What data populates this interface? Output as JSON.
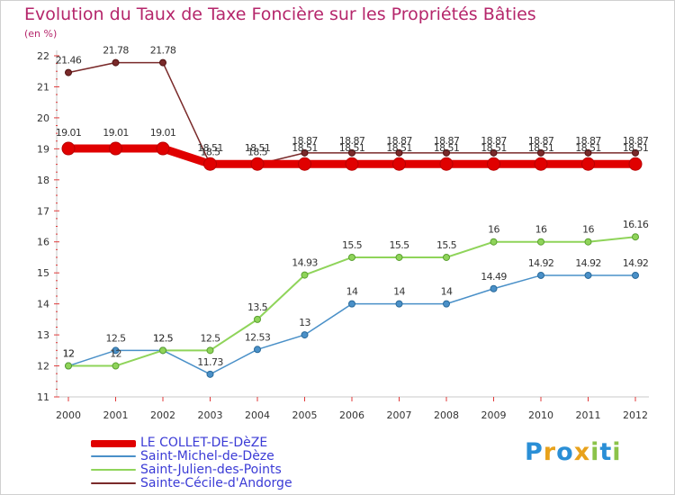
{
  "header": {
    "title": "Evolution du Taux de Taxe Foncière sur les Propriétés Bâties",
    "unit": "(en %)"
  },
  "logo": {
    "text": "Proxiti",
    "letters": [
      "P",
      "r",
      "o",
      "x",
      "i",
      "t",
      "i"
    ],
    "colors": [
      "#2a8fd6",
      "#e8a21c",
      "#2a8fd6",
      "#e8a21c",
      "#8bc34a",
      "#2a8fd6",
      "#8bc34a"
    ]
  },
  "chart_data": {
    "type": "line",
    "title": "Evolution du Taux de Taxe Foncière sur les Propriétés Bâties",
    "ylabel": "(en %)",
    "xlabel": "",
    "x": [
      "2000",
      "2001",
      "2002",
      "2003",
      "2004",
      "2005",
      "2006",
      "2007",
      "2008",
      "2009",
      "2010",
      "2011",
      "2012"
    ],
    "ylim": [
      11,
      22
    ],
    "yticks": [
      "11",
      "12",
      "13",
      "14",
      "15",
      "16",
      "17",
      "18",
      "19",
      "20",
      "21",
      "22"
    ],
    "grid": false,
    "legend_position": "bottom-left",
    "series": [
      {
        "name": "LE COLLET-DE-DèZE",
        "color": "#e00000",
        "values": [
          19.01,
          19.01,
          19.01,
          18.51,
          18.51,
          18.51,
          18.51,
          18.51,
          18.51,
          18.51,
          18.51,
          18.51,
          18.51
        ],
        "labels": [
          "19.01",
          "19.01",
          "19.01",
          "18.51",
          "18.51",
          "18.51",
          "18.51",
          "18.51",
          "18.51",
          "18.51",
          "18.51",
          "18.51",
          "18.51"
        ]
      },
      {
        "name": "Saint-Michel-de-Dèze",
        "color": "#4a90c8",
        "values": [
          12,
          12.5,
          12.5,
          11.73,
          12.53,
          13,
          14,
          14,
          14,
          14.49,
          14.92,
          14.92,
          14.92
        ],
        "labels": [
          "12",
          "12.5",
          "12.5",
          "11.73",
          "12.53",
          "13",
          "14",
          "14",
          "14",
          "14.49",
          "14.92",
          "14.92",
          "14.92"
        ]
      },
      {
        "name": "Saint-Julien-des-Points",
        "color": "#8fd45a",
        "values": [
          12,
          12,
          12.5,
          12.5,
          13.5,
          14.93,
          15.5,
          15.5,
          15.5,
          16,
          16,
          16,
          16.16
        ],
        "labels": [
          "12",
          "12",
          "12.5",
          "12.5",
          "13.5",
          "14.93",
          "15.5",
          "15.5",
          "15.5",
          "16",
          "16",
          "16",
          "16.16"
        ]
      },
      {
        "name": "Sainte-Cécile-d'Andorge",
        "color": "#7a2a2a",
        "values": [
          21.46,
          21.78,
          21.78,
          18.5,
          18.5,
          18.87,
          18.87,
          18.87,
          18.87,
          18.87,
          18.87,
          18.87,
          18.87
        ],
        "labels": [
          "21.46",
          "21.78",
          "21.78",
          "18.5",
          "18.5",
          "18.87",
          "18.87",
          "18.87",
          "18.87",
          "18.87",
          "18.87",
          "18.87",
          "18.87"
        ]
      }
    ]
  }
}
